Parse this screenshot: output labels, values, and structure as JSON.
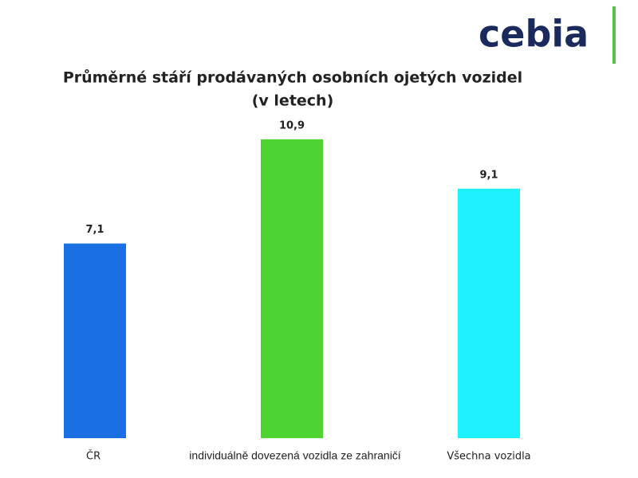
{
  "logo": "cebia",
  "chart_data": {
    "type": "bar",
    "title": "Průměrné stáří prodávaných osobních ojetých vozidel",
    "subtitle": "(v letech)",
    "categories": [
      "ČR",
      "individuálně dovezená vozidla ze zahraničí",
      "Všechna vozidla"
    ],
    "values": [
      7.1,
      10.9,
      9.1
    ],
    "value_labels": [
      "7,1",
      "10,9",
      "9,1"
    ],
    "colors": [
      "#1a6fe3",
      "#4dd431",
      "#1ef2ff"
    ],
    "ylim": [
      0,
      12
    ]
  }
}
